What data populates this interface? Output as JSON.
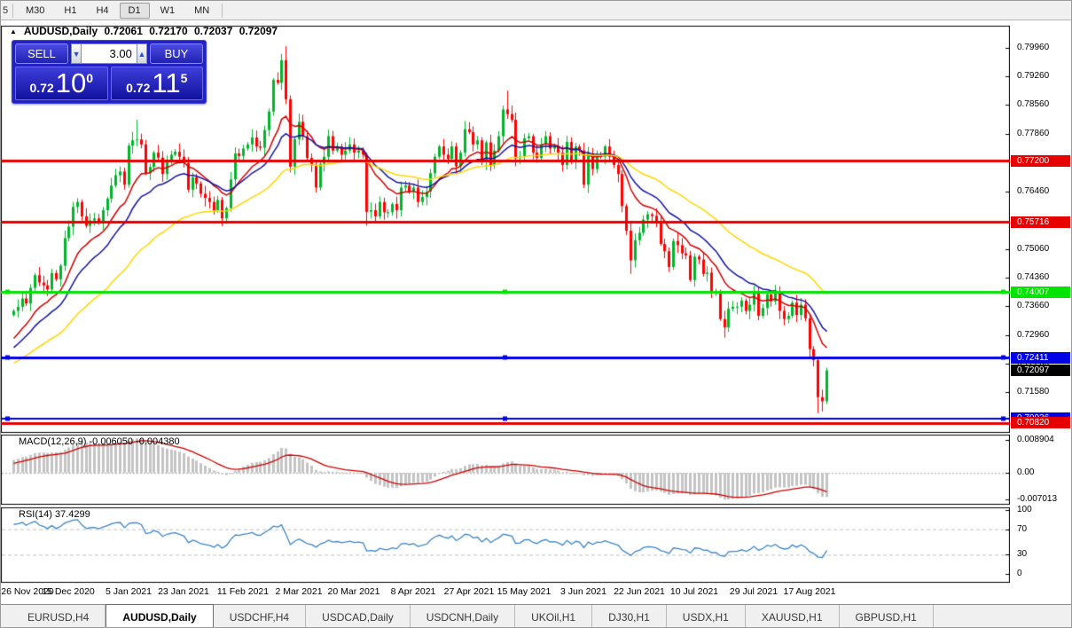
{
  "toolbar": {
    "partial_left_item": "5",
    "timeframes": [
      "M30",
      "H1",
      "H4",
      "D1",
      "W1",
      "MN"
    ],
    "active_timeframe": "D1"
  },
  "chart": {
    "collapse_icon": "black-up-triangle",
    "collapse_glyph": "▲",
    "title": {
      "symbol": "AUDUSD,Daily",
      "open": "0.72061",
      "high": "0.72170",
      "low": "0.72037",
      "close": "0.72097"
    },
    "trade_panel": {
      "sell_label": "SELL",
      "buy_label": "BUY",
      "volume": "3.00",
      "volume_down_glyph": "▼",
      "volume_up_glyph": "▲",
      "sell_price": {
        "prefix": "0.72",
        "big": "10",
        "sup": "0"
      },
      "buy_price": {
        "prefix": "0.72",
        "big": "11",
        "sup": "5"
      }
    },
    "macd_label": "MACD(12,26,9)",
    "macd_values": "-0.006050 -0.004380",
    "rsi_label": "RSI(14)",
    "rsi_value": "37.4299"
  },
  "tabs": {
    "items": [
      "EURUSD,H4",
      "AUDUSD,Daily",
      "USDCHF,H4",
      "USDCAD,Daily",
      "USDCNH,Daily",
      "UKOil,H1",
      "DJ30,H1",
      "USDX,H1",
      "XAUUSD,H1",
      "GBPUSD,H1"
    ],
    "active": "AUDUSD,Daily"
  },
  "chart_data": {
    "type": "candlestick",
    "symbol": "AUDUSD",
    "timeframe": "Daily",
    "colors": {
      "bull": "#00b52a",
      "bear": "#ff0000",
      "background": "#ffffff",
      "foreground": "#000000"
    },
    "price_ticks": [
      "0.79960",
      "0.79260",
      "0.78560",
      "0.77860",
      "0.76460",
      "0.75060",
      "0.74360",
      "0.73660",
      "0.72960",
      "0.72260",
      "0.71580"
    ],
    "current_price": {
      "label": "0.72097",
      "value": 0.72097,
      "badge_bg": "#000000",
      "badge_fg": "#ffffff"
    },
    "hlines": [
      {
        "label": "0.77200",
        "price": 0.772,
        "color": "#e60000",
        "width": 3,
        "handles": false
      },
      {
        "label": "0.75716",
        "price": 0.75716,
        "color": "#e60000",
        "width": 3,
        "handles": false
      },
      {
        "label": "0.74007",
        "price": 0.74007,
        "color": "#00e400",
        "width": 3,
        "handles": true
      },
      {
        "label": "0.72411",
        "price": 0.72411,
        "color": "#0000e6",
        "width": 3,
        "handles": true
      },
      {
        "label": "0.70936",
        "price": 0.70936,
        "color": "#0000e6",
        "width": 2,
        "handles": true
      },
      {
        "label": "0.70820",
        "price": 0.7082,
        "color": "#e60000",
        "width": 3,
        "handles": false
      }
    ],
    "moving_averages": [
      {
        "type": "ema",
        "period": 12,
        "color": "#d40000"
      },
      {
        "type": "ema",
        "period": 20,
        "color": "#1414a0"
      },
      {
        "type": "ema",
        "period": 45,
        "color": "#ffd700"
      }
    ],
    "macd": {
      "fast": 12,
      "slow": 26,
      "signal": 9,
      "bar_color": "#c4c4c4",
      "line_color": "#cc0000",
      "ticks": [
        {
          "label": "0.008904",
          "v": 0.008904
        },
        {
          "label": "0.00",
          "v": 0
        },
        {
          "label": "-0.007013",
          "v": -0.007013
        }
      ]
    },
    "rsi": {
      "period": 14,
      "color": "#3d85c6",
      "levels": [
        70,
        30
      ],
      "ticks": [
        {
          "label": "100",
          "v": 100
        },
        {
          "label": "70",
          "v": 70
        },
        {
          "label": "30",
          "v": 30
        },
        {
          "label": "0",
          "v": 0
        }
      ]
    },
    "date_ticks": [
      {
        "label": "26 Nov 2020",
        "i": 0
      },
      {
        "label": "15 Dec 2020",
        "i": 13
      },
      {
        "label": "5 Jan 2021",
        "i": 27
      },
      {
        "label": "23 Jan 2021",
        "i": 40
      },
      {
        "label": "11 Feb 2021",
        "i": 54
      },
      {
        "label": "2 Mar 2021",
        "i": 67
      },
      {
        "label": "20 Mar 2021",
        "i": 80
      },
      {
        "label": "8 Apr 2021",
        "i": 94
      },
      {
        "label": "27 Apr 2021",
        "i": 107
      },
      {
        "label": "15 May 2021",
        "i": 120
      },
      {
        "label": "3 Jun 2021",
        "i": 134
      },
      {
        "label": "22 Jun 2021",
        "i": 147
      },
      {
        "label": "10 Jul 2021",
        "i": 160
      },
      {
        "label": "29 Jul 2021",
        "i": 174
      },
      {
        "label": "17 Aug 2021",
        "i": 187
      }
    ],
    "warmup_closes_for_indicators": [
      0.7162,
      0.7176,
      0.7169,
      0.7184,
      0.7177,
      0.7192,
      0.7185,
      0.72,
      0.7192,
      0.7208,
      0.7199,
      0.7216,
      0.7207,
      0.7224,
      0.7215,
      0.7232,
      0.7223,
      0.724,
      0.7231,
      0.7249,
      0.7239,
      0.7258,
      0.7248,
      0.7268,
      0.7257,
      0.7278,
      0.7268,
      0.729,
      0.731,
      0.734
    ],
    "closes": [
      0.7355,
      0.7365,
      0.7385,
      0.7373,
      0.7411,
      0.7442,
      0.7424,
      0.7417,
      0.7407,
      0.7447,
      0.7432,
      0.7465,
      0.7532,
      0.756,
      0.7608,
      0.762,
      0.7585,
      0.7562,
      0.7575,
      0.758,
      0.7572,
      0.76,
      0.7628,
      0.766,
      0.7685,
      0.7694,
      0.7662,
      0.7757,
      0.777,
      0.7772,
      0.776,
      0.769,
      0.7705,
      0.774,
      0.7728,
      0.7688,
      0.772,
      0.7735,
      0.7742,
      0.773,
      0.7715,
      0.765,
      0.768,
      0.7665,
      0.764,
      0.763,
      0.762,
      0.76,
      0.7625,
      0.758,
      0.7605,
      0.7675,
      0.7738,
      0.7732,
      0.775,
      0.776,
      0.7777,
      0.7755,
      0.7752,
      0.7795,
      0.784,
      0.7917,
      0.791,
      0.7965,
      0.787,
      0.7706,
      0.7773,
      0.7815,
      0.778,
      0.7727,
      0.771,
      0.7655,
      0.7713,
      0.773,
      0.778,
      0.7745,
      0.7755,
      0.7735,
      0.7745,
      0.776,
      0.774,
      0.7745,
      0.7735,
      0.7596,
      0.76,
      0.7585,
      0.762,
      0.7595,
      0.7595,
      0.7615,
      0.76,
      0.7655,
      0.766,
      0.7645,
      0.7655,
      0.762,
      0.7632,
      0.7645,
      0.769,
      0.773,
      0.7755,
      0.7735,
      0.7725,
      0.7755,
      0.7707,
      0.774,
      0.7797,
      0.779,
      0.776,
      0.777,
      0.7717,
      0.7765,
      0.771,
      0.7745,
      0.778,
      0.7845,
      0.7834,
      0.782,
      0.7726,
      0.773,
      0.7775,
      0.778,
      0.774,
      0.7727,
      0.776,
      0.778,
      0.775,
      0.7755,
      0.774,
      0.771,
      0.7766,
      0.7718,
      0.7755,
      0.7745,
      0.7662,
      0.7738,
      0.77,
      0.7735,
      0.773,
      0.7755,
      0.773,
      0.771,
      0.7688,
      0.761,
      0.755,
      0.7478,
      0.7527,
      0.7545,
      0.7577,
      0.759,
      0.7586,
      0.7568,
      0.7518,
      0.75,
      0.7462,
      0.7525,
      0.7515,
      0.7495,
      0.749,
      0.743,
      0.7487,
      0.748,
      0.7445,
      0.7448,
      0.74,
      0.74,
      0.7335,
      0.7315,
      0.736,
      0.7365,
      0.7365,
      0.738,
      0.7355,
      0.737,
      0.74,
      0.7343,
      0.7362,
      0.7395,
      0.7378,
      0.74,
      0.7355,
      0.7335,
      0.7343,
      0.7375,
      0.7345,
      0.737,
      0.7337,
      0.7262,
      0.7235,
      0.7145,
      0.7135,
      0.721
    ],
    "wick_overrides": [
      {
        "i": 29,
        "high": 0.782
      },
      {
        "i": 64,
        "high": 0.7999
      },
      {
        "i": 65,
        "low": 0.7692
      },
      {
        "i": 83,
        "low": 0.7562
      },
      {
        "i": 116,
        "high": 0.7891
      },
      {
        "i": 145,
        "low": 0.7445
      },
      {
        "i": 167,
        "low": 0.729
      },
      {
        "i": 189,
        "low": 0.7106
      },
      {
        "i": 190,
        "low": 0.711
      },
      {
        "i": 191,
        "high": 0.7217,
        "low": 0.7128
      }
    ]
  }
}
